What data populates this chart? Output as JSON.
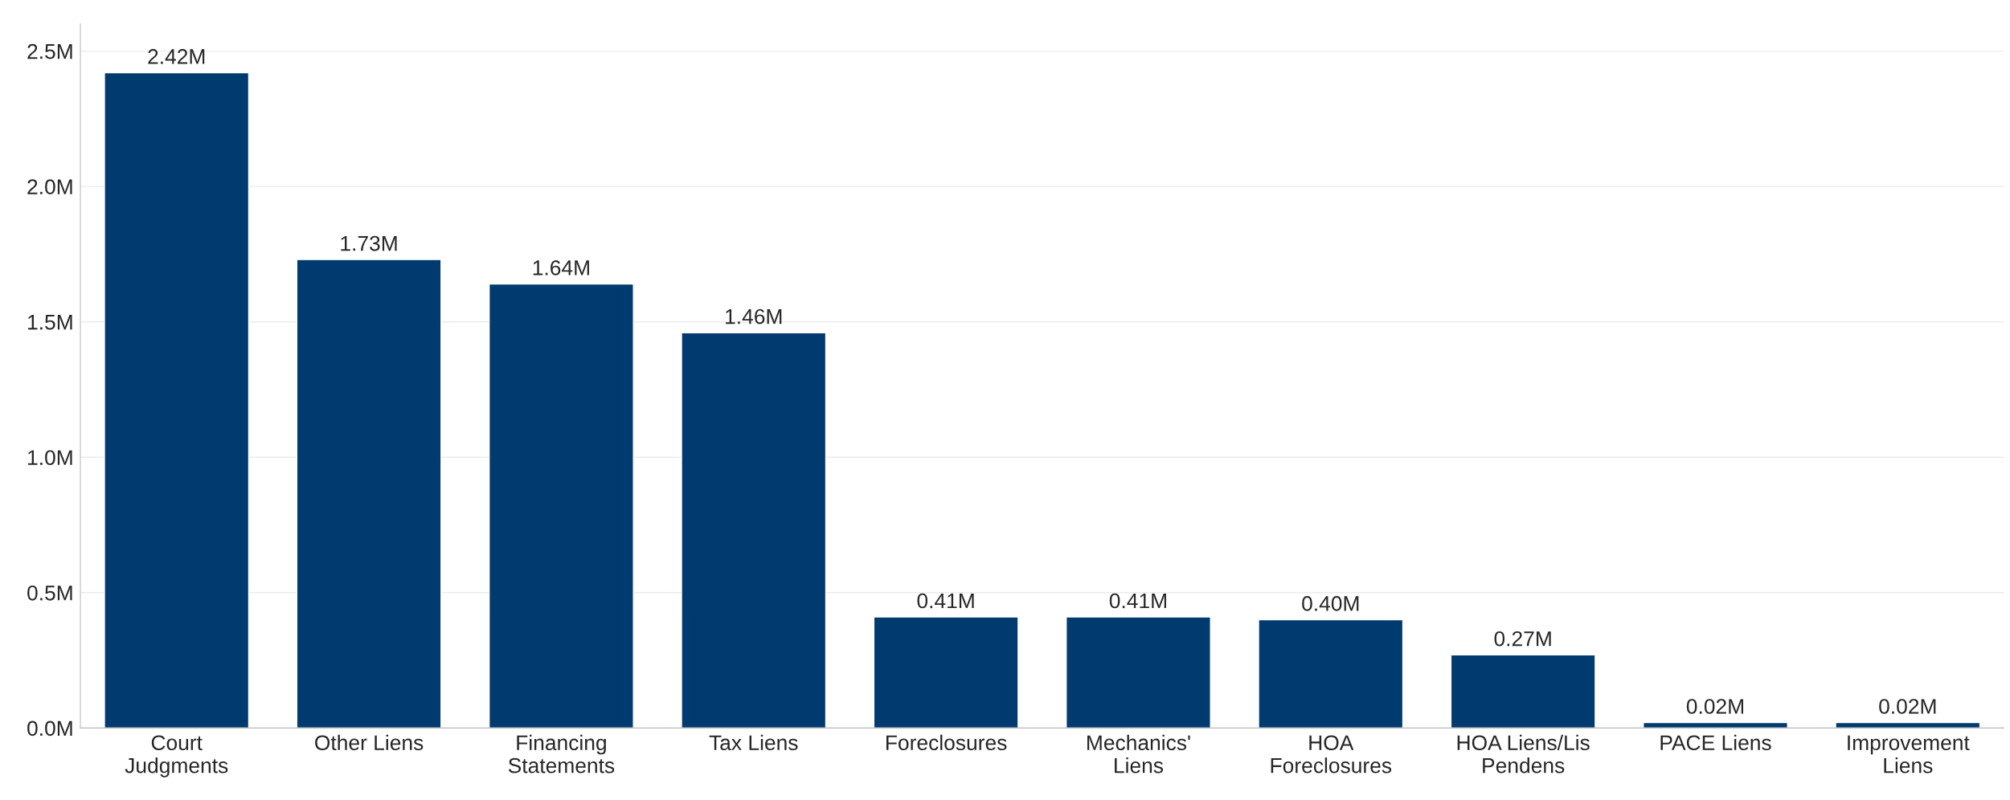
{
  "chart_data": {
    "type": "bar",
    "categories": [
      "Court\nJudgments",
      "Other Liens",
      "Financing\nStatements",
      "Tax Liens",
      "Foreclosures",
      "Mechanics'\nLiens",
      "HOA\nForeclosures",
      "HOA Liens/Lis\nPendens",
      "PACE Liens",
      "Improvement\nLiens"
    ],
    "values": [
      2.42,
      1.73,
      1.64,
      1.46,
      0.41,
      0.41,
      0.4,
      0.27,
      0.02,
      0.02
    ],
    "value_labels": [
      "2.42M",
      "1.73M",
      "1.64M",
      "1.46M",
      "0.41M",
      "0.41M",
      "0.40M",
      "0.27M",
      "0.02M",
      "0.02M"
    ],
    "color": "#003a6e",
    "ylim": [
      0,
      2.6
    ],
    "yticks": [
      {
        "value": 0,
        "label": "0.0M"
      },
      {
        "value": 0.5,
        "label": "0.5M"
      },
      {
        "value": 1.0,
        "label": "1.0M"
      },
      {
        "value": 1.5,
        "label": "1.5M"
      },
      {
        "value": 2.0,
        "label": "2.0M"
      },
      {
        "value": 2.5,
        "label": "2.5M"
      }
    ],
    "grid": "y"
  }
}
